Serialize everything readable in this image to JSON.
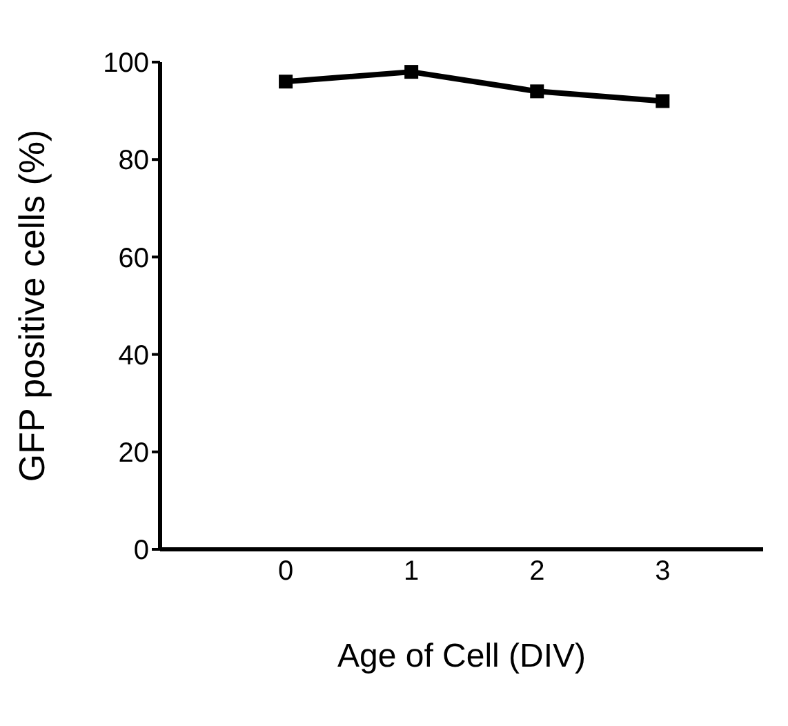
{
  "chart_data": {
    "type": "line",
    "xlabel": "Age of Cell (DIV)",
    "ylabel": "GFP positive cells (%)",
    "x": [
      0,
      1,
      2,
      3
    ],
    "series": [
      {
        "color": "#000000",
        "values": [
          96,
          98,
          94,
          92
        ]
      }
    ],
    "xlim": [
      -1,
      3.8
    ],
    "xticks": [
      0,
      1,
      2,
      3
    ],
    "ylim": [
      0,
      100
    ],
    "yticks": [
      0,
      20,
      40,
      60,
      80,
      100
    ],
    "marker": "square",
    "grid": false,
    "legend": false
  }
}
